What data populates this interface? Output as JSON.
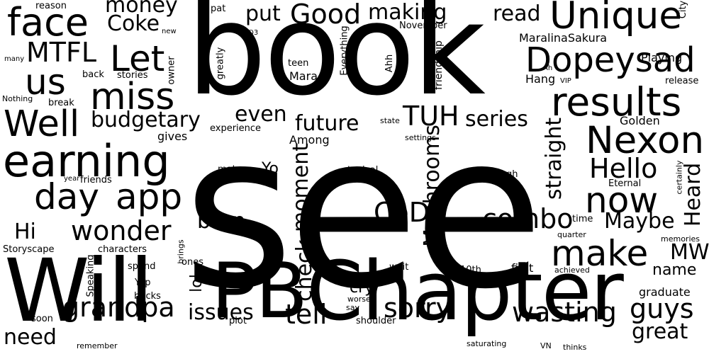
{
  "words": [
    "see",
    "book",
    "Chapter",
    "Will",
    "PB",
    "Unique",
    "results",
    "Dopeysad",
    "earning",
    "face",
    "Nexon",
    "miss",
    "Well",
    "app",
    "day",
    "now",
    "make",
    "us",
    "Let",
    "MTFL",
    "Good",
    "TUH",
    "CoD",
    "wonder",
    "grandpa",
    "Hello",
    "wasting",
    "tell",
    "guys",
    "sorry",
    "combo",
    "great",
    "Mushrooms",
    "straight",
    "moment",
    "check",
    "money",
    "put",
    "making",
    "Coke",
    "Hi",
    "born",
    "issues",
    "future",
    "series",
    "budgetary",
    "even",
    "read",
    "MW",
    "Maybe",
    "Heard",
    "need",
    "name",
    "lol",
    "Yo",
    "cry",
    "Playing",
    "MaralinaSakura",
    "Hang",
    "Golden",
    "graduate",
    "first",
    "friendship",
    "Among",
    "gives",
    "experience",
    "Mara",
    "teen",
    "Everything",
    "greatly",
    "Ahh",
    "stories",
    "back",
    "break",
    "owner",
    "pat",
    "reason",
    "new",
    "November",
    "City",
    "Ah",
    "VIP",
    "release",
    "many",
    "Nothing",
    "Q3",
    "state",
    "settings",
    "certainly",
    "Although",
    "typical",
    "Eternal",
    "mature",
    "year",
    "friends",
    "time",
    "quarter",
    "memories",
    "market",
    "Storyscape",
    "characters",
    "Speaking",
    "brings",
    "ones",
    "spend",
    "Yep",
    "bucks",
    "wait",
    "10th",
    "achieved",
    "worse",
    "say",
    "soon",
    "plot",
    "shoulder",
    "remember",
    "saturating",
    "VN",
    "thinks"
  ]
}
